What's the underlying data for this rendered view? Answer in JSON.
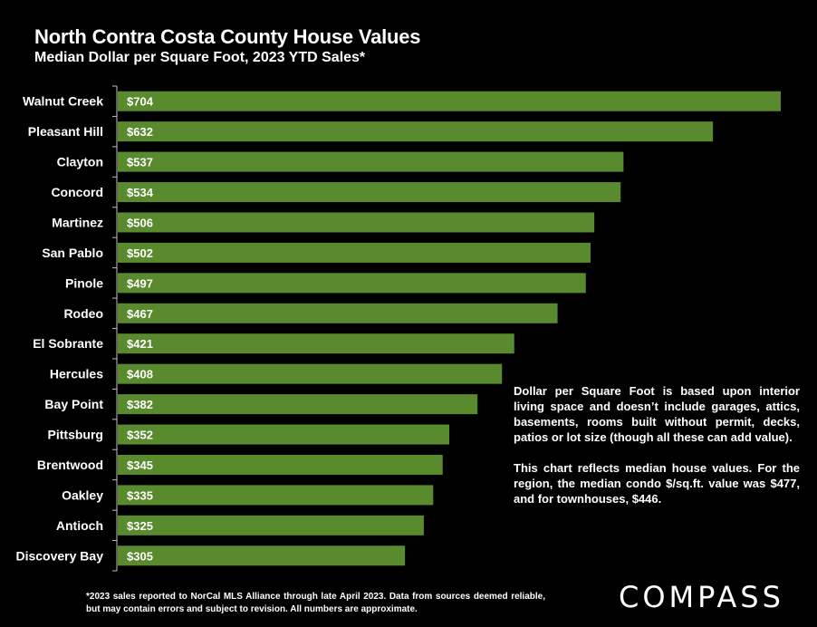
{
  "chart_data": {
    "type": "bar",
    "orientation": "horizontal",
    "title": "North Contra Costa County House Values",
    "subtitle": "Median Dollar per Square Foot, 2023 YTD Sales*",
    "categories": [
      "Walnut Creek",
      "Pleasant Hill",
      "Clayton",
      "Concord",
      "Martinez",
      "San Pablo",
      "Pinole",
      "Rodeo",
      "El Sobrante",
      "Hercules",
      "Bay Point",
      "Pittsburg",
      "Brentwood",
      "Oakley",
      "Antioch",
      "Discovery Bay"
    ],
    "values": [
      704,
      632,
      537,
      534,
      506,
      502,
      497,
      467,
      421,
      408,
      382,
      352,
      345,
      335,
      325,
      305
    ],
    "value_labels": [
      "$704",
      "$632",
      "$537",
      "$534",
      "$506",
      "$502",
      "$497",
      "$467",
      "$421",
      "$408",
      "$382",
      "$352",
      "$345",
      "$335",
      "$325",
      "$305"
    ],
    "bar_color": "#5a8a2e",
    "xlim": [
      0,
      704
    ]
  },
  "note": {
    "p1": "Dollar per Square Foot is based upon interior living space and doesn’t include garages, attics, basements, rooms built without permit, decks, patios or lot size (though all these can add value).",
    "p2": "This chart reflects median house values. For the region, the median condo $/sq.ft. value was $477, and for townhouses, $446."
  },
  "footnote": "*2023 sales reported to NorCal MLS Alliance through late April 2023. Data from sources deemed reliable, but may contain errors and subject to revision. All numbers are approximate.",
  "logo": "COMPASS"
}
